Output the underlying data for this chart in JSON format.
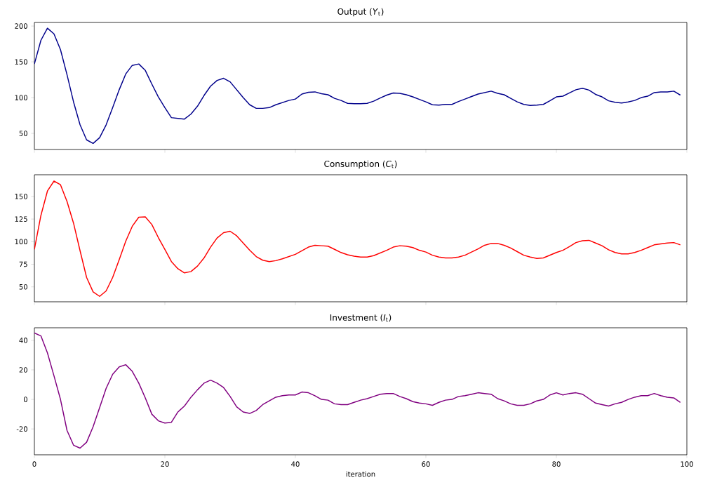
{
  "chart_data": [
    {
      "type": "line",
      "title": "Output (*Y*$_{t}$)",
      "xlim": [
        0,
        100
      ],
      "xticks": [
        0,
        20,
        40,
        60,
        80,
        100
      ],
      "ylim": [
        27.5,
        205
      ],
      "yticks": [
        50,
        100,
        150,
        200
      ],
      "tick_labels": "y",
      "x": [
        0,
        1,
        2,
        3,
        4,
        5,
        6,
        7,
        8,
        9,
        10,
        11,
        12,
        13,
        14,
        15,
        16,
        17,
        18,
        19,
        20,
        21,
        22,
        23,
        24,
        25,
        26,
        27,
        28,
        29,
        30,
        31,
        32,
        33,
        34,
        35,
        36,
        37,
        38,
        39,
        40,
        41,
        42,
        43,
        44,
        45,
        46,
        47,
        48,
        49,
        50,
        51,
        52,
        53,
        54,
        55,
        56,
        57,
        58,
        59,
        60,
        61,
        62,
        63,
        64,
        65,
        66,
        67,
        68,
        69,
        70,
        71,
        72,
        73,
        74,
        75,
        76,
        77,
        78,
        79,
        80,
        81,
        82,
        83,
        84,
        85,
        86,
        87,
        88,
        89,
        90,
        91,
        92,
        93,
        94,
        95,
        96,
        97,
        98,
        99
      ],
      "series": [
        {
          "color": "#00008b",
          "values": [
            147,
            180,
            197,
            189,
            167,
            132,
            94,
            62,
            41,
            36,
            44,
            62,
            86,
            111,
            133,
            145,
            147,
            138,
            119,
            101,
            86,
            72,
            71,
            70,
            77,
            88,
            103,
            116,
            124,
            127,
            122,
            111,
            100,
            90,
            85,
            85,
            86,
            90,
            93,
            96,
            98,
            105,
            107.5,
            108,
            105.5,
            104,
            99,
            96,
            92,
            91.5,
            91.5,
            92,
            95,
            99.5,
            103.5,
            106.5,
            106,
            104,
            101,
            97.5,
            94,
            90,
            89.5,
            90.5,
            90.5,
            94.5,
            98,
            101.5,
            105,
            107,
            109,
            106,
            104,
            99,
            94,
            90.5,
            89,
            89.5,
            90.5,
            95.5,
            101,
            102,
            106.5,
            111,
            113,
            110.5,
            104.5,
            101,
            95.5,
            93.5,
            92.5,
            94,
            96,
            100,
            102,
            107,
            108,
            108,
            109,
            103.5
          ]
        }
      ]
    },
    {
      "type": "line",
      "title": "Consumption (*C*$_{t}$)",
      "xlim": [
        0,
        100
      ],
      "xticks": [
        0,
        20,
        40,
        60,
        80,
        100
      ],
      "ylim": [
        33.5,
        174
      ],
      "yticks": [
        50,
        75,
        100,
        125,
        150
      ],
      "tick_labels": "y",
      "x": [
        0,
        1,
        2,
        3,
        4,
        5,
        6,
        7,
        8,
        9,
        10,
        11,
        12,
        13,
        14,
        15,
        16,
        17,
        18,
        19,
        20,
        21,
        22,
        23,
        24,
        25,
        26,
        27,
        28,
        29,
        30,
        31,
        32,
        33,
        34,
        35,
        36,
        37,
        38,
        39,
        40,
        41,
        42,
        43,
        44,
        45,
        46,
        47,
        48,
        49,
        50,
        51,
        52,
        53,
        54,
        55,
        56,
        57,
        58,
        59,
        60,
        61,
        62,
        63,
        64,
        65,
        66,
        67,
        68,
        69,
        70,
        71,
        72,
        73,
        74,
        75,
        76,
        77,
        78,
        79,
        80,
        81,
        82,
        83,
        84,
        85,
        86,
        87,
        88,
        89,
        90,
        91,
        92,
        93,
        94,
        95,
        96,
        97,
        98,
        99
      ],
      "series": [
        {
          "color": "#ff0000",
          "values": [
            91.5,
            129,
            156,
            167,
            163,
            144.5,
            120.5,
            90,
            60.5,
            44.5,
            39.5,
            45.5,
            60.5,
            80,
            100.5,
            117,
            127,
            127.5,
            119,
            104.5,
            91.5,
            78,
            70,
            65.5,
            67,
            73,
            82,
            94,
            104,
            110,
            111.5,
            106.5,
            98.5,
            90.5,
            83.5,
            79.5,
            78,
            79,
            81,
            83.5,
            86,
            90,
            94,
            96,
            95.5,
            95,
            91.5,
            88,
            85.5,
            84,
            83,
            83,
            84.5,
            87.5,
            90.5,
            94,
            95.5,
            95,
            93.5,
            90.5,
            88.5,
            85,
            83,
            82,
            82,
            83,
            85,
            88.5,
            92,
            96,
            98,
            98,
            96,
            93,
            89,
            85,
            83,
            81.5,
            82,
            85,
            88,
            90.5,
            94.5,
            99,
            101,
            101.5,
            98.5,
            95.5,
            91,
            88,
            86.5,
            86.5,
            88,
            90.5,
            93.5,
            96.5,
            97.5,
            98.5,
            99,
            96.5
          ]
        }
      ]
    },
    {
      "type": "line",
      "title": "Investment (*I*$_{t}$)",
      "xlabel": "iteration",
      "xlim": [
        0,
        100
      ],
      "xticks": [
        0,
        20,
        40,
        60,
        80,
        100
      ],
      "ylim": [
        -37.5,
        48.5
      ],
      "yticks": [
        -20,
        0,
        20,
        40
      ],
      "x": [
        0,
        1,
        2,
        3,
        4,
        5,
        6,
        7,
        8,
        9,
        10,
        11,
        12,
        13,
        14,
        15,
        16,
        17,
        18,
        19,
        20,
        21,
        22,
        23,
        24,
        25,
        26,
        27,
        28,
        29,
        30,
        31,
        32,
        33,
        34,
        35,
        36,
        37,
        38,
        39,
        40,
        41,
        42,
        43,
        44,
        45,
        46,
        47,
        48,
        49,
        50,
        51,
        52,
        53,
        54,
        55,
        56,
        57,
        58,
        59,
        60,
        61,
        62,
        63,
        64,
        65,
        66,
        67,
        68,
        69,
        70,
        71,
        72,
        73,
        74,
        75,
        76,
        77,
        78,
        79,
        80,
        81,
        82,
        83,
        84,
        85,
        86,
        87,
        88,
        89,
        90,
        91,
        92,
        93,
        94,
        95,
        96,
        97,
        98,
        99
      ],
      "series": [
        {
          "color": "#800080",
          "values": [
            45,
            43,
            31.5,
            16,
            0,
            -21,
            -31,
            -33,
            -29,
            -18.5,
            -5.5,
            7.5,
            17,
            22,
            23.5,
            19,
            11,
            1,
            -10,
            -14.5,
            -16,
            -15.5,
            -8.5,
            -4.5,
            1.5,
            6.5,
            11,
            13,
            11,
            8,
            2,
            -5,
            -8.5,
            -9.5,
            -7.5,
            -3.5,
            -1,
            1.5,
            2.5,
            3,
            3,
            5,
            4.5,
            2.5,
            0,
            -0.5,
            -3,
            -3.5,
            -3.5,
            -2,
            -0.5,
            0.5,
            2,
            3.5,
            4,
            4,
            2,
            0.5,
            -1.5,
            -2.5,
            -3,
            -4,
            -2,
            -0.5,
            0,
            2,
            2.5,
            3.5,
            4.5,
            4,
            3.5,
            0.5,
            -1,
            -3,
            -4,
            -4,
            -3,
            -1,
            0,
            3,
            4.5,
            3,
            4,
            4.5,
            3.5,
            0.5,
            -2.5,
            -3.5,
            -4.5,
            -3,
            -2,
            0,
            1.5,
            2.5,
            2.5,
            4,
            2.5,
            1.5,
            1,
            -2
          ]
        }
      ]
    }
  ]
}
